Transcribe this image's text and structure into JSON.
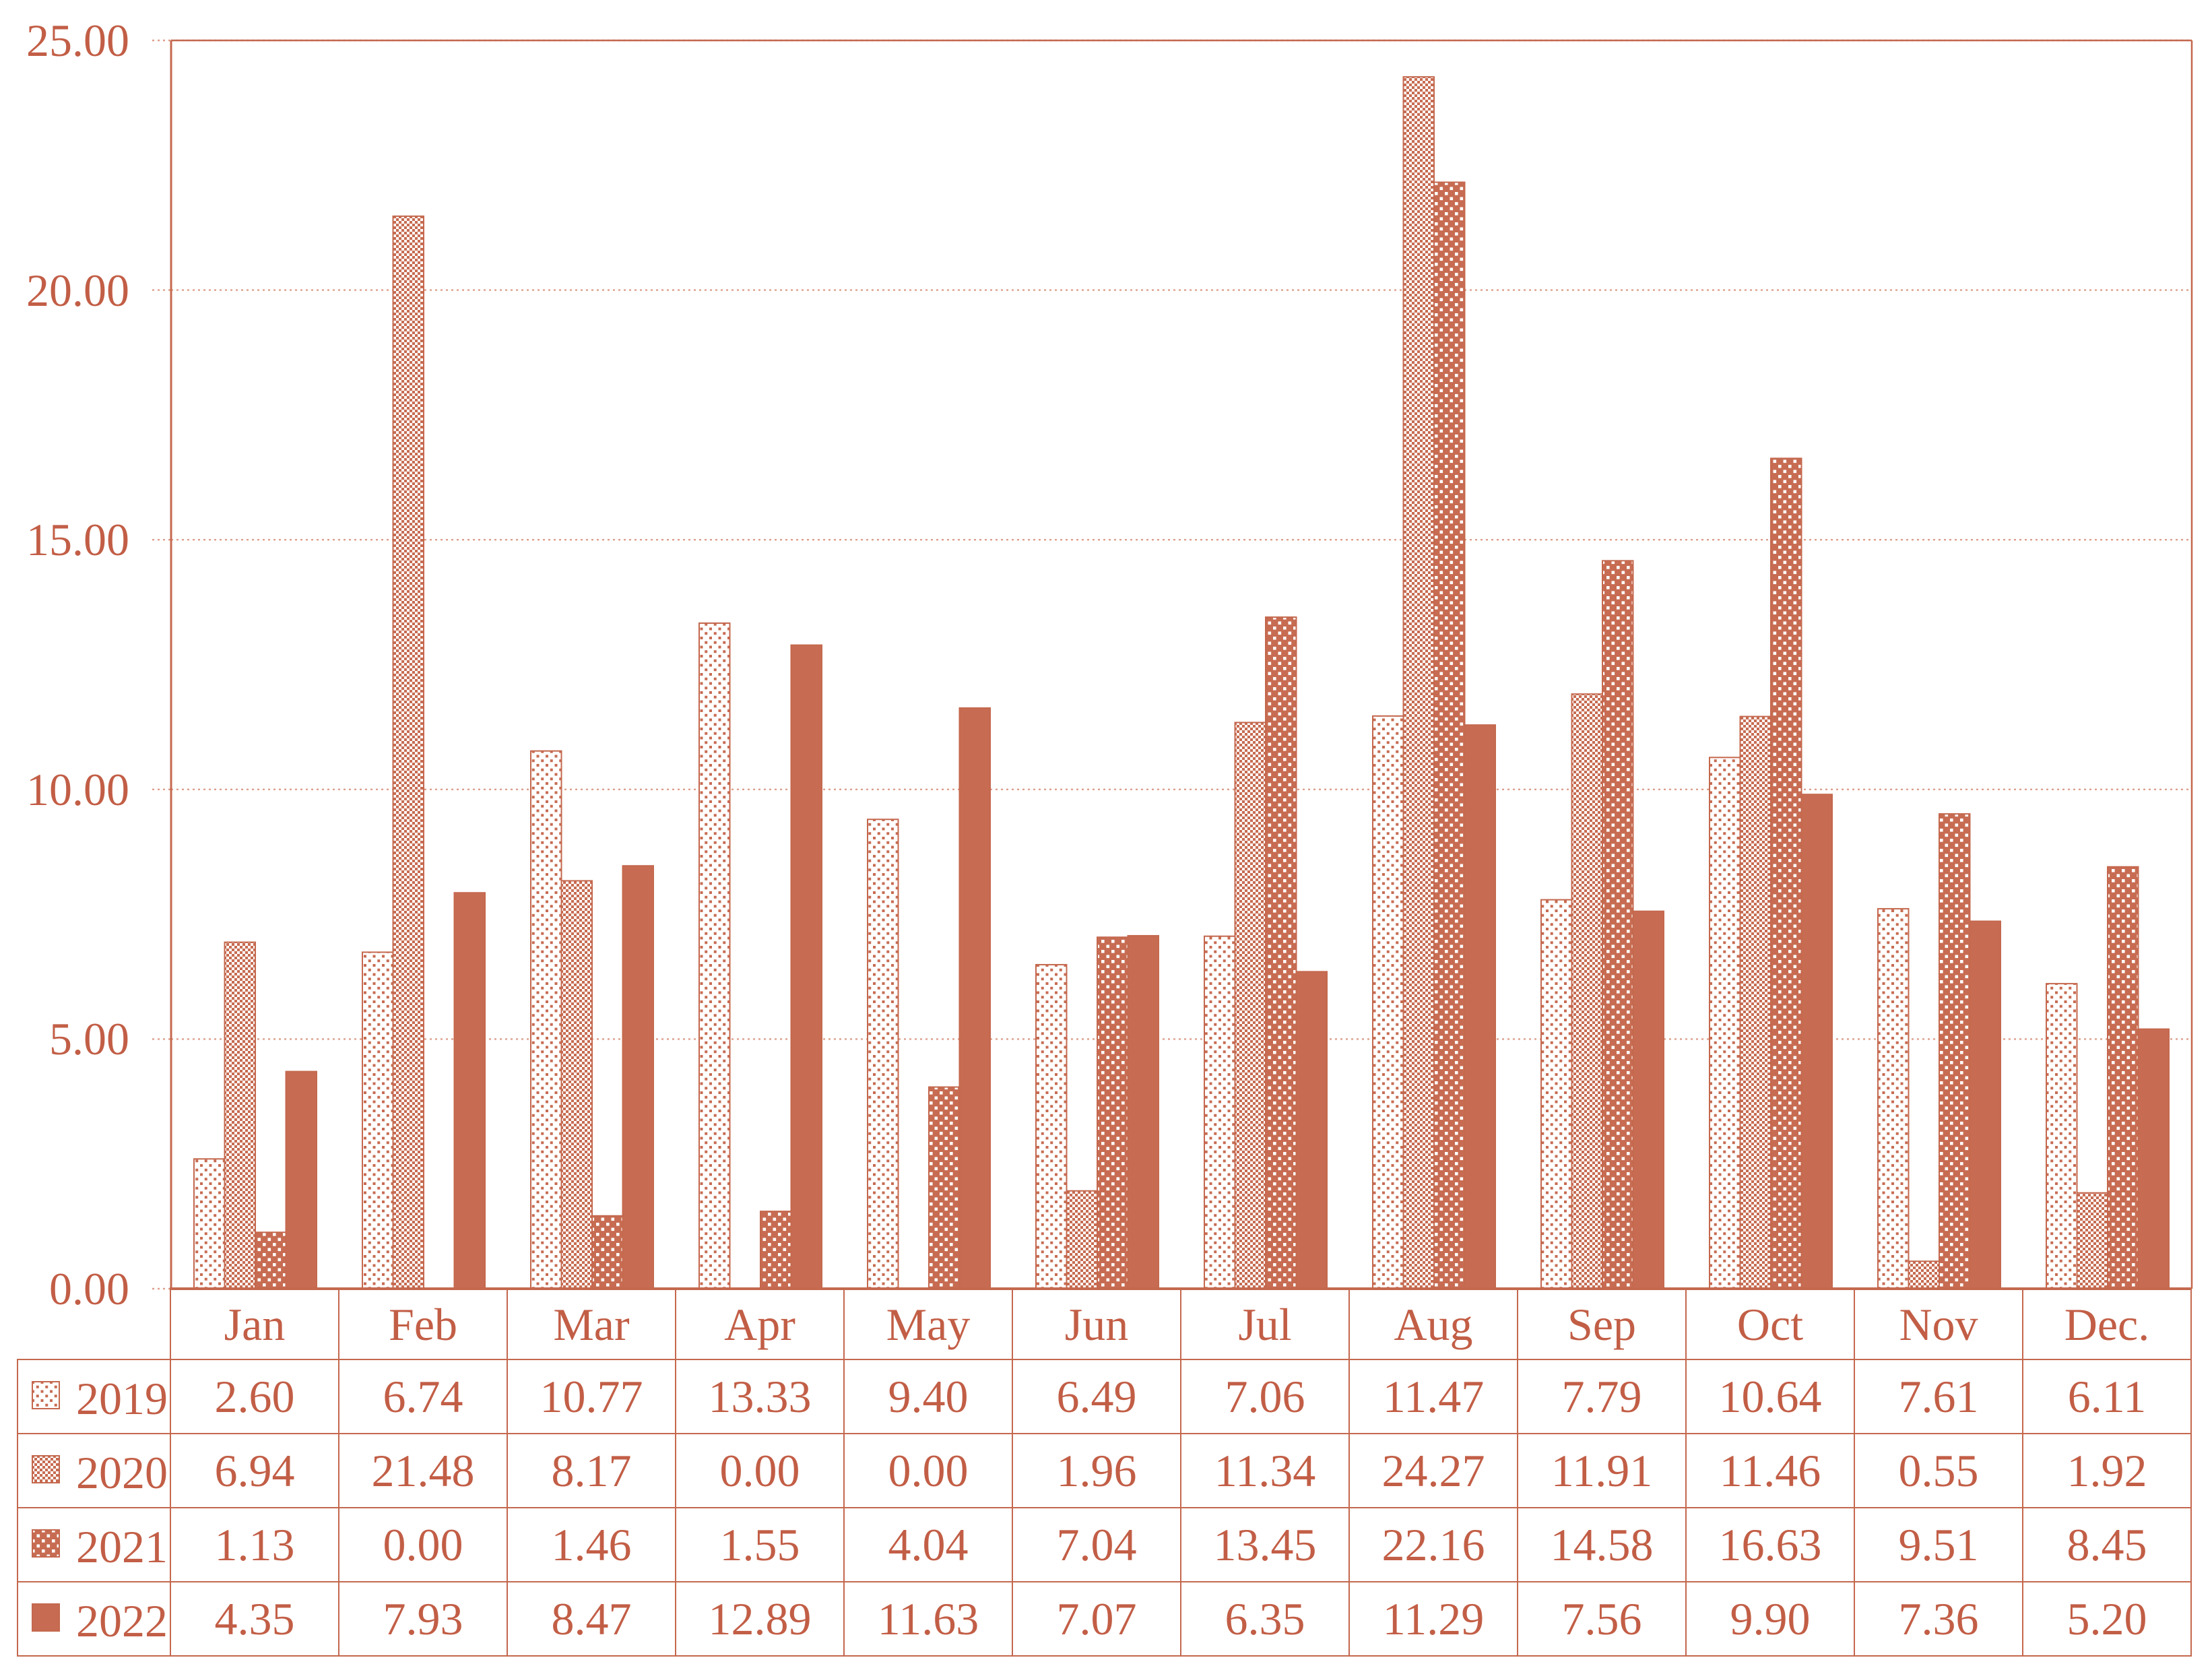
{
  "colors": {
    "accent_fill": "#C76C52",
    "text": "#C25E46",
    "line": "#C4684E",
    "grid": "#DD9F8C",
    "background": "#FFFFFF"
  },
  "chart_data": {
    "type": "bar",
    "title": "",
    "xlabel": "",
    "ylabel": "",
    "ylim": [
      0,
      25
    ],
    "yticks": [
      "0.00",
      "5.00",
      "10.00",
      "15.00",
      "20.00",
      "25.00"
    ],
    "grid": "horizontal-dotted",
    "legend_position": "table-left",
    "categories": [
      "Jan",
      "Feb",
      "Mar",
      "Apr",
      "May",
      "Jun",
      "Jul",
      "Aug",
      "Sep",
      "Oct",
      "Nov",
      "Dec."
    ],
    "series": [
      {
        "name": "2019",
        "pattern": "dotted",
        "values": [
          "2.60",
          "6.74",
          "10.77",
          "13.33",
          "9.40",
          "6.49",
          "7.06",
          "11.47",
          "7.79",
          "10.64",
          "7.61",
          "6.11"
        ]
      },
      {
        "name": "2020",
        "pattern": "checkerboard",
        "values": [
          "6.94",
          "21.48",
          "8.17",
          "0.00",
          "0.00",
          "1.96",
          "11.34",
          "24.27",
          "11.91",
          "11.46",
          "0.55",
          "1.92"
        ]
      },
      {
        "name": "2021",
        "pattern": "white-dots",
        "values": [
          "1.13",
          "0.00",
          "1.46",
          "1.55",
          "4.04",
          "7.04",
          "13.45",
          "22.16",
          "14.58",
          "16.63",
          "9.51",
          "8.45"
        ]
      },
      {
        "name": "2022",
        "pattern": "solid",
        "values": [
          "4.35",
          "7.93",
          "8.47",
          "12.89",
          "11.63",
          "7.07",
          "6.35",
          "11.29",
          "7.56",
          "9.90",
          "7.36",
          "5.20"
        ]
      }
    ]
  }
}
